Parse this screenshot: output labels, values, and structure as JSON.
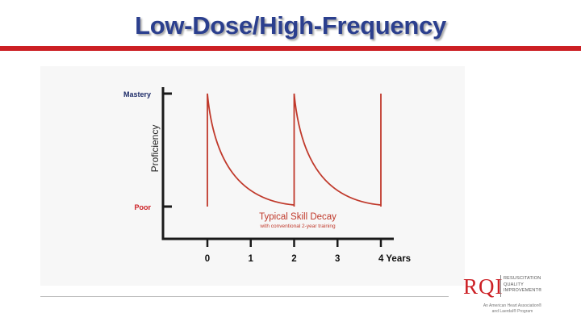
{
  "slide": {
    "title": "Low-Dose/High-Frequency"
  },
  "colors": {
    "title": "#2b3f8e",
    "accent_red": "#cc1f24",
    "mastery_label": "#1d2b68",
    "poor_label": "#cc1f24",
    "axis": "#1a1a1a",
    "curve": "#c0392b"
  },
  "logo": {
    "letters": "RQI",
    "line1": "RESUSCITATION",
    "line2": "QUALITY",
    "line3": "IMPROVEMENT®",
    "tagline1": "An American Heart Association®",
    "tagline2": "and Laerdal® Program"
  },
  "chart_data": {
    "type": "line",
    "ylabel": "Proficiency",
    "y_tick_labels": [
      "Mastery",
      "Poor"
    ],
    "x_tick_labels": [
      "0",
      "1",
      "2",
      "3",
      "4 Years"
    ],
    "x": [
      0,
      1,
      2,
      3,
      4
    ],
    "xlim": [
      -1,
      4.5
    ],
    "ylim": [
      0,
      1
    ],
    "mastery_level": 0.9,
    "poor_level": 0.2,
    "series": [
      {
        "name": "Typical Skill Decay",
        "x": [
          0,
          0,
          0.25,
          0.5,
          0.75,
          1,
          1.25,
          1.5,
          1.75,
          2,
          2,
          2,
          2.25,
          2.5,
          2.75,
          3,
          3.25,
          3.5,
          3.75,
          4,
          4,
          4
        ],
        "values": [
          0.2,
          0.9,
          0.62,
          0.46,
          0.36,
          0.3,
          0.26,
          0.23,
          0.22,
          0.21,
          0.2,
          0.9,
          0.62,
          0.46,
          0.36,
          0.3,
          0.26,
          0.23,
          0.22,
          0.21,
          0.2,
          0.9
        ]
      }
    ],
    "annotation": {
      "title": "Typical Skill Decay",
      "subtitle": "with conventional 2-year training",
      "x": 2.5,
      "y": 0.1
    }
  }
}
